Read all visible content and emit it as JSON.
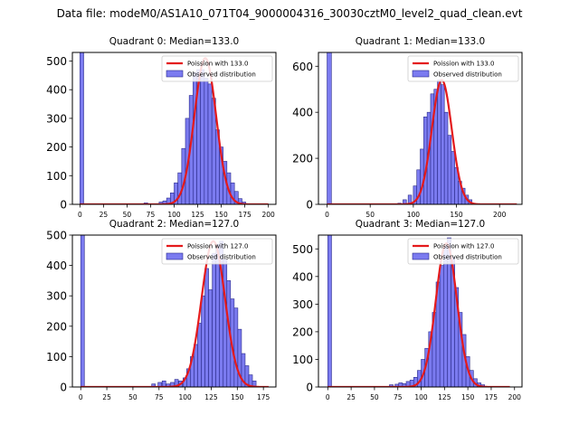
{
  "figure_title": "Data file: modeM0/AS1A10_071T04_9000004316_30030cztM0_level2_quad_clean.evt",
  "colors": {
    "hist_fill": "#7b7bf0",
    "hist_edge": "#2a2a8a",
    "fit": "#e41a1c"
  },
  "chart_data": [
    {
      "type": "bar",
      "title": "Quadrant 0: Median=133.0",
      "legend": [
        "Poission with 133.0",
        "Observed distribution"
      ],
      "legend_position": "top-right",
      "xlim": [
        -8,
        208
      ],
      "ylim": [
        0,
        530
      ],
      "xticks": [
        0,
        25,
        50,
        75,
        100,
        125,
        150,
        175,
        200
      ],
      "yticks": [
        0,
        100,
        200,
        300,
        400,
        500
      ],
      "zero_bin": {
        "x0": 0,
        "x1": 4,
        "value": 530
      },
      "bins_x0": [
        68,
        84,
        88,
        92,
        96,
        100,
        104,
        108,
        112,
        116,
        120,
        124,
        128,
        132,
        136,
        140,
        144,
        148,
        152,
        156,
        160,
        164,
        168,
        172
      ],
      "bin_width": 4,
      "values": [
        5,
        8,
        12,
        22,
        40,
        75,
        110,
        195,
        300,
        380,
        460,
        470,
        470,
        440,
        420,
        370,
        260,
        200,
        150,
        110,
        75,
        45,
        20,
        8
      ],
      "poisson_mean": 133,
      "poisson_peak": 510,
      "fit_domain": [
        0,
        200
      ]
    },
    {
      "type": "bar",
      "title": "Quadrant 1: Median=133.0",
      "legend": [
        "Poission with 133.0",
        "Observed distribution"
      ],
      "legend_position": "top-right",
      "xlim": [
        -10,
        226
      ],
      "ylim": [
        0,
        660
      ],
      "xticks": [
        0,
        50,
        100,
        150,
        200
      ],
      "yticks": [
        0,
        200,
        400,
        600
      ],
      "zero_bin": {
        "x0": 0,
        "x1": 5,
        "value": 660
      },
      "bins_x0": [
        82,
        88,
        94,
        100,
        104,
        108,
        112,
        116,
        120,
        124,
        128,
        132,
        136,
        140,
        144,
        148,
        152,
        156,
        160,
        164
      ],
      "bin_width": 4,
      "values": [
        5,
        20,
        40,
        80,
        150,
        240,
        380,
        400,
        480,
        500,
        540,
        520,
        400,
        300,
        230,
        160,
        100,
        70,
        40,
        20
      ],
      "poisson_mean": 133,
      "poisson_peak": 540,
      "fit_domain": [
        0,
        220
      ]
    },
    {
      "type": "bar",
      "title": "Quadrant 2: Median=127.0",
      "legend": [
        "Poission with 127.0",
        "Observed distribution"
      ],
      "legend_position": "top-right",
      "xlim": [
        -8,
        187
      ],
      "ylim": [
        0,
        500
      ],
      "xticks": [
        0,
        25,
        50,
        75,
        100,
        125,
        150,
        175
      ],
      "yticks": [
        0,
        100,
        200,
        300,
        400,
        500
      ],
      "zero_bin": {
        "x0": 0,
        "x1": 3.5,
        "value": 500
      },
      "bins_x0": [
        68,
        74,
        78,
        82,
        86,
        90,
        94,
        98,
        101.5,
        105,
        108.5,
        112,
        115.5,
        119,
        122.5,
        126,
        129.5,
        133,
        136.5,
        140,
        143.5,
        147,
        150.5,
        154,
        157.5,
        161,
        164.5
      ],
      "bin_width": 3.5,
      "values": [
        10,
        15,
        20,
        10,
        15,
        25,
        20,
        30,
        60,
        100,
        140,
        210,
        300,
        390,
        320,
        440,
        470,
        480,
        420,
        350,
        290,
        260,
        190,
        110,
        70,
        40,
        20
      ],
      "poisson_mean": 127,
      "poisson_peak": 480,
      "fit_domain": [
        0,
        180
      ]
    },
    {
      "type": "bar",
      "title": "Quadrant 3: Median=127.0",
      "legend": [
        "Poission with 127.0",
        "Observed distribution"
      ],
      "legend_position": "top-right",
      "xlim": [
        -10,
        208
      ],
      "ylim": [
        0,
        550
      ],
      "xticks": [
        0,
        25,
        50,
        75,
        100,
        125,
        150,
        175,
        200
      ],
      "yticks": [
        0,
        100,
        200,
        300,
        400,
        500
      ],
      "zero_bin": {
        "x0": 0,
        "x1": 4,
        "value": 550
      },
      "bins_x0": [
        66,
        72,
        76,
        80,
        84,
        88,
        92,
        96,
        100,
        104,
        108,
        112,
        116,
        120,
        124,
        128,
        132,
        136,
        140,
        144,
        148,
        152,
        156,
        160,
        164
      ],
      "bin_width": 4,
      "values": [
        8,
        10,
        15,
        12,
        20,
        25,
        35,
        60,
        100,
        140,
        200,
        270,
        380,
        440,
        510,
        540,
        470,
        360,
        270,
        190,
        110,
        60,
        30,
        15,
        8
      ],
      "poisson_mean": 127,
      "poisson_peak": 520,
      "fit_domain": [
        0,
        195
      ]
    }
  ]
}
